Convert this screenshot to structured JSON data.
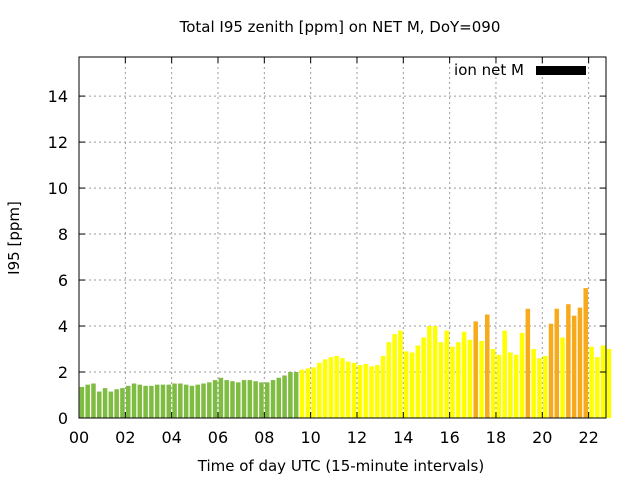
{
  "chart_data": {
    "type": "bar",
    "title": "Total I95 zenith [ppm] on NET M, DoY=090",
    "xlabel": "Time of day UTC (15-minute intervals)",
    "ylabel": "I95 [ppm]",
    "xlim": [
      0,
      22.75
    ],
    "ylim": [
      0,
      15.7
    ],
    "grid": true,
    "legend_position": "top-right",
    "legend": [
      {
        "label": "ion net M",
        "color": "#000000"
      }
    ],
    "x_ticks": [
      0,
      2,
      4,
      6,
      8,
      10,
      12,
      14,
      16,
      18,
      20,
      22
    ],
    "x_tick_labels": [
      "00",
      "02",
      "04",
      "06",
      "08",
      "10",
      "12",
      "14",
      "16",
      "18",
      "20",
      "22"
    ],
    "y_ticks": [
      0,
      2,
      4,
      6,
      8,
      10,
      12,
      14
    ],
    "y_tick_labels": [
      "0",
      "2",
      "4",
      "6",
      "8",
      "10",
      "12",
      "14"
    ],
    "interval_hours": 0.25,
    "values": [
      1.35,
      1.45,
      1.5,
      1.15,
      1.3,
      1.15,
      1.25,
      1.3,
      1.4,
      1.5,
      1.45,
      1.4,
      1.4,
      1.45,
      1.45,
      1.45,
      1.5,
      1.5,
      1.45,
      1.4,
      1.45,
      1.5,
      1.55,
      1.65,
      1.75,
      1.65,
      1.6,
      1.55,
      1.65,
      1.65,
      1.6,
      1.55,
      1.55,
      1.65,
      1.75,
      1.85,
      2.0,
      2.0,
      2.1,
      2.15,
      2.2,
      2.4,
      2.55,
      2.65,
      2.7,
      2.6,
      2.45,
      2.4,
      2.3,
      2.35,
      2.25,
      2.3,
      2.7,
      3.3,
      3.65,
      3.8,
      2.9,
      2.85,
      3.15,
      3.5,
      4.0,
      4.0,
      3.3,
      3.8,
      3.1,
      3.3,
      3.75,
      3.4,
      4.2,
      3.35,
      4.5,
      3.0,
      2.75,
      3.8,
      2.85,
      2.75,
      3.7,
      4.75,
      3.0,
      2.6,
      2.7,
      4.1,
      4.75,
      3.5,
      4.95,
      4.45,
      4.8,
      5.65,
      3.1,
      2.65,
      3.15,
      3.0
    ],
    "color_scale": [
      {
        "max": 2.0,
        "color": "#7fbd42"
      },
      {
        "max": 4.0,
        "color": "#ffff00"
      },
      {
        "max": 99,
        "color": "#f7ab1c"
      }
    ]
  }
}
